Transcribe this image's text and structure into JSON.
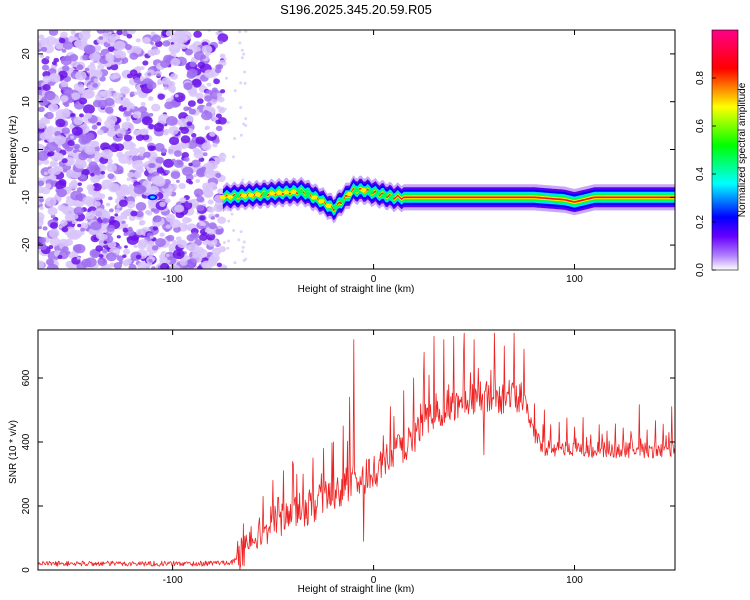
{
  "chart_data": [
    {
      "type": "heatmap",
      "title": "S196.2025.345.20.59.R05",
      "xlabel": "Height of straight line (km)",
      "ylabel": "Frequency (Hz)",
      "xlim": [
        -167,
        150
      ],
      "ylim": [
        -25,
        25
      ],
      "x_ticks": [
        -100,
        0,
        100
      ],
      "y_ticks": [
        -20,
        -10,
        0,
        10,
        20
      ],
      "colorbar": {
        "label": "Normalized spectral amplitude",
        "range": [
          0,
          1
        ],
        "ticks": [
          "0.0",
          "0.2",
          "0.4",
          "0.6",
          "0.8"
        ],
        "stops": [
          "#ffffff",
          "#6600ff",
          "#0000ff",
          "#00ffff",
          "#00ff00",
          "#ffff00",
          "#ff0000",
          "#ff0088"
        ]
      },
      "signal_track": {
        "start_height": -75,
        "end_height": 150,
        "frequency": [
          [
            -75,
            -10
          ],
          [
            -60,
            -9.5
          ],
          [
            -45,
            -9
          ],
          [
            -35,
            -8.8
          ],
          [
            -25,
            -11
          ],
          [
            -20,
            -12.5
          ],
          [
            -15,
            -10.5
          ],
          [
            -10,
            -8.5
          ],
          [
            -5,
            -8.5
          ],
          [
            0,
            -9
          ],
          [
            10,
            -10
          ],
          [
            50,
            -10
          ],
          [
            80,
            -10
          ],
          [
            95,
            -10.5
          ],
          [
            100,
            -11
          ],
          [
            110,
            -10
          ],
          [
            150,
            -10
          ]
        ]
      },
      "noise_region_end": -75,
      "isolated_blob": [
        -110,
        -10
      ]
    },
    {
      "type": "line",
      "xlabel": "Height of straight line (km)",
      "ylabel": "SNR (10 * v/v)",
      "xlim": [
        -167,
        150
      ],
      "ylim": [
        0,
        750
      ],
      "x_ticks": [
        -100,
        0,
        100
      ],
      "y_ticks": [
        0,
        200,
        400,
        600
      ],
      "line_color": "#ee2222",
      "series": [
        {
          "name": "SNR",
          "x": [
            -167,
            -120,
            -85,
            -70,
            -65,
            -60,
            -50,
            -40,
            -30,
            -20,
            -10,
            0,
            10,
            20,
            25,
            30,
            40,
            50,
            60,
            70,
            75,
            78,
            80,
            85,
            90,
            100,
            120,
            150
          ],
          "y": [
            20,
            20,
            20,
            25,
            50,
            100,
            150,
            180,
            200,
            240,
            280,
            300,
            360,
            420,
            450,
            490,
            520,
            540,
            540,
            540,
            540,
            460,
            420,
            380,
            380,
            375,
            375,
            375
          ],
          "spikes": [
            [
              -55,
              230
            ],
            [
              -50,
              280
            ],
            [
              -45,
              310
            ],
            [
              -40,
              330
            ],
            [
              -35,
              300
            ],
            [
              -30,
              350
            ],
            [
              -25,
              380
            ],
            [
              -20,
              400
            ],
            [
              -15,
              450
            ],
            [
              -12,
              540
            ],
            [
              -10,
              720
            ],
            [
              -5,
              430
            ],
            [
              5,
              420
            ],
            [
              10,
              480
            ],
            [
              15,
              560
            ],
            [
              20,
              600
            ],
            [
              25,
              680
            ],
            [
              30,
              730
            ],
            [
              35,
              720
            ],
            [
              40,
              730
            ],
            [
              45,
              740
            ],
            [
              50,
              720
            ],
            [
              55,
              710
            ],
            [
              60,
              740
            ],
            [
              65,
              700
            ],
            [
              70,
              740
            ],
            [
              75,
              690
            ],
            [
              80,
              520
            ],
            [
              85,
              500
            ]
          ],
          "dips": [
            [
              -5,
              90
            ],
            [
              55,
              360
            ]
          ]
        }
      ]
    }
  ]
}
